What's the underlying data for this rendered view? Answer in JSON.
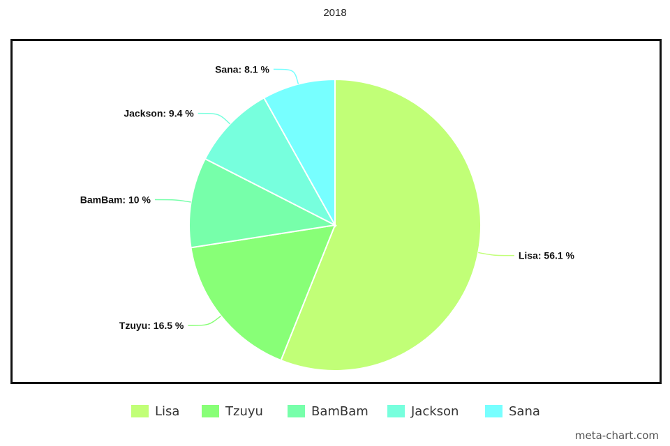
{
  "chart_data": {
    "type": "pie",
    "title": "2018",
    "slices": [
      {
        "label": "Lisa",
        "value": 56.1,
        "data_label": "Lisa: 56.1 %",
        "color": "#c1ff77"
      },
      {
        "label": "Tzuyu",
        "value": 16.5,
        "data_label": "Tzuyu: 16.5 %",
        "color": "#88ff77"
      },
      {
        "label": "BamBam",
        "value": 10,
        "data_label": "BamBam: 10 %",
        "color": "#77ffaa"
      },
      {
        "label": "Jackson",
        "value": 9.4,
        "data_label": "Jackson: 9.4 %",
        "color": "#77ffdd"
      },
      {
        "label": "Sana",
        "value": 8.1,
        "data_label": "Sana: 8.1 %",
        "color": "#77ffff"
      }
    ],
    "legend_position": "bottom"
  },
  "watermark": "meta-chart.com"
}
